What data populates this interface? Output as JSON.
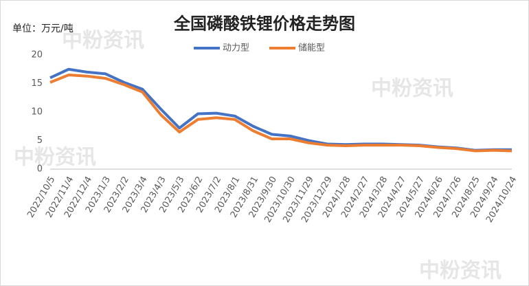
{
  "chart_data": {
    "type": "line",
    "title": "全国磷酸铁锂价格走势图",
    "unit_label": "单位：万元/吨",
    "watermark": "中粉资讯",
    "categories": [
      "2022/10/5",
      "2022/11/4",
      "2022/12/4",
      "2023/1/3",
      "2023/2/2",
      "2023/3/4",
      "2023/4/3",
      "2023/5/3",
      "2023/6/2",
      "2023/7/2",
      "2023/8/1",
      "2023/8/31",
      "2023/9/30",
      "2023/10/30",
      "2023/11/29",
      "2023/12/29",
      "2024/1/28",
      "2024/2/27",
      "2024/3/28",
      "2024/4/27",
      "2024/5/27",
      "2024/6/26",
      "2024/7/26",
      "2024/8/25",
      "2024/9/24",
      "2024/10/24"
    ],
    "series": [
      {
        "name": "动力型",
        "color": "#4472c4",
        "values": [
          16.0,
          17.5,
          17.0,
          16.7,
          15.2,
          14.0,
          10.5,
          7.2,
          9.7,
          9.8,
          9.3,
          7.5,
          6.1,
          5.8,
          5.0,
          4.4,
          4.3,
          4.4,
          4.4,
          4.3,
          4.2,
          3.9,
          3.7,
          3.3,
          3.4,
          3.4
        ]
      },
      {
        "name": "储能型",
        "color": "#ed7d31",
        "values": [
          15.2,
          16.5,
          16.3,
          15.9,
          14.8,
          13.5,
          9.5,
          6.5,
          8.7,
          9.0,
          8.7,
          6.7,
          5.3,
          5.3,
          4.6,
          4.2,
          4.1,
          4.2,
          4.2,
          4.2,
          4.1,
          3.8,
          3.6,
          3.2,
          3.3,
          3.2
        ]
      }
    ],
    "ylim": [
      0,
      20
    ],
    "yticks": [
      0,
      5,
      10,
      15,
      20
    ],
    "grid": false,
    "legend": "top"
  }
}
